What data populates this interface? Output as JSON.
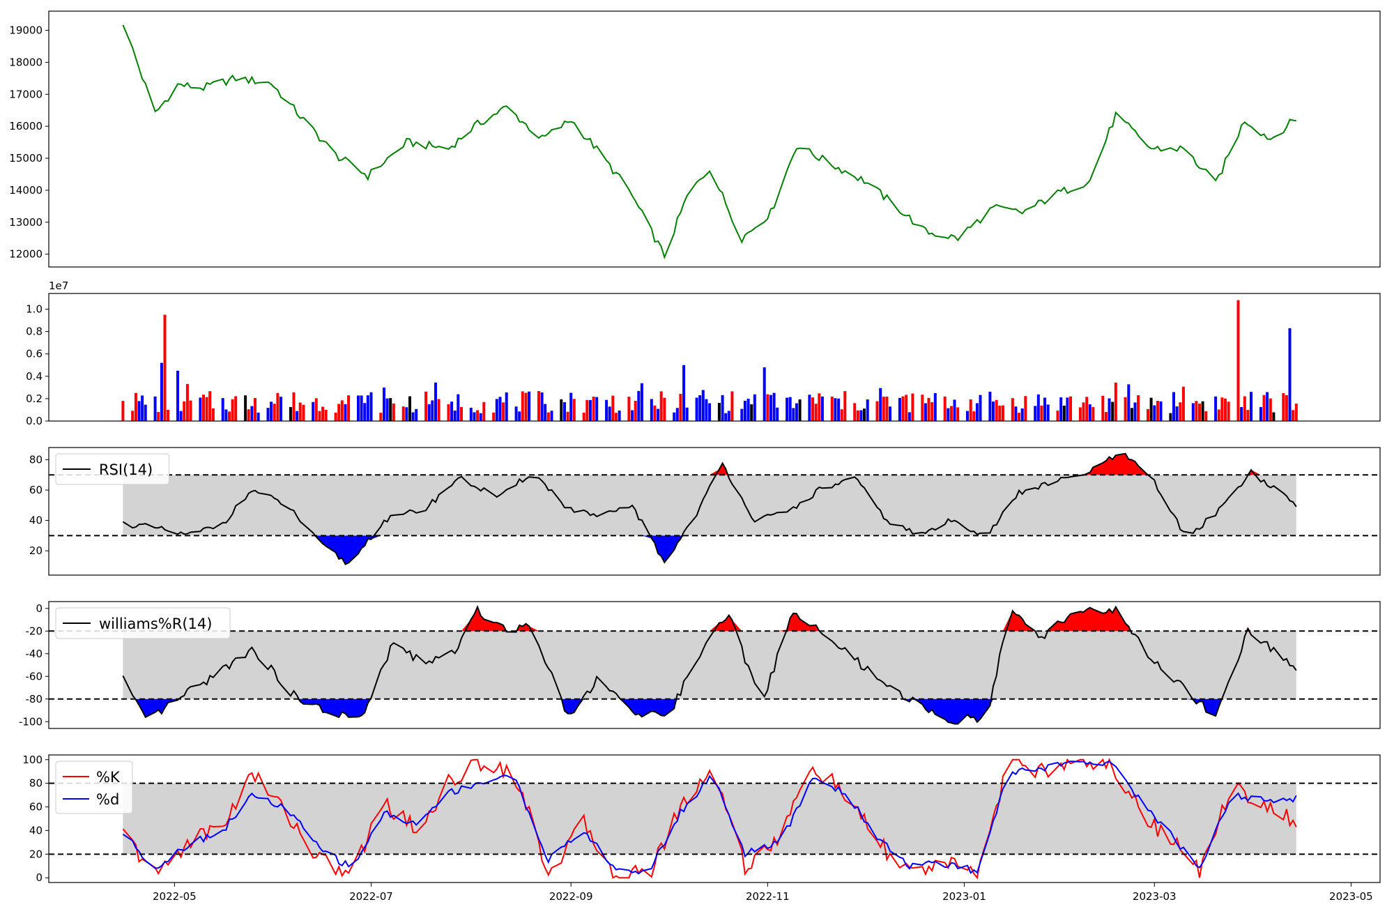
{
  "chart_data": [
    {
      "type": "line",
      "panel": "price",
      "title": "",
      "xlabel": "",
      "ylabel": "",
      "ylim": [
        11600,
        19600
      ],
      "yticks": [
        "12000",
        "13000",
        "14000",
        "15000",
        "16000",
        "17000",
        "18000",
        "19000"
      ],
      "grid": false,
      "line_color": "#008000",
      "series": [
        {
          "x": [
            "2022-04-15",
            "2022-04-25",
            "2022-05-02",
            "2022-05-10",
            "2022-05-20",
            "2022-05-31",
            "2022-06-10",
            "2022-06-20",
            "2022-06-30",
            "2022-07-12",
            "2022-07-25",
            "2022-08-02",
            "2022-08-12",
            "2022-08-23",
            "2022-09-01",
            "2022-09-08",
            "2022-09-19",
            "2022-09-30",
            "2022-10-07",
            "2022-10-14",
            "2022-10-24",
            "2022-11-02",
            "2022-11-10",
            "2022-11-21",
            "2022-12-01",
            "2022-12-12",
            "2022-12-20",
            "2022-12-30",
            "2023-01-10",
            "2023-01-19",
            "2023-01-30",
            "2023-02-09",
            "2023-02-17",
            "2023-02-28",
            "2023-03-10",
            "2023-03-20",
            "2023-03-29",
            "2023-04-06",
            "2023-04-14"
          ],
          "values": [
            19250,
            16400,
            17300,
            17200,
            17500,
            17350,
            16200,
            15100,
            14450,
            15500,
            15300,
            16000,
            16600,
            15600,
            16200,
            15400,
            14000,
            11950,
            13800,
            14700,
            12500,
            13300,
            15400,
            14800,
            14300,
            13400,
            12700,
            12500,
            13450,
            13300,
            13900,
            14300,
            16350,
            15300,
            15300,
            14200,
            16200,
            15600,
            16250
          ]
        }
      ]
    },
    {
      "type": "bar",
      "panel": "volume",
      "title": "",
      "ylabel": "",
      "scale_label": "1e7",
      "ylim": [
        0,
        1.14
      ],
      "yticks": [
        "0.0",
        "0.2",
        "0.4",
        "0.6",
        "0.8",
        "1.0"
      ],
      "colors": {
        "up": "#ff0000",
        "down": "#0000ff",
        "flat": "#000000"
      },
      "series": [
        {
          "x": [
            "2022-04-15",
            "2022-04-27",
            "2022-04-28",
            "2022-05-02",
            "2022-07-25",
            "2022-10-06",
            "2022-10-31",
            "2023-03-27",
            "2023-04-12"
          ],
          "values": [
            0.18,
            0.52,
            0.95,
            0.45,
            0.15,
            0.5,
            0.48,
            1.08,
            0.83
          ]
        }
      ]
    },
    {
      "type": "line",
      "panel": "rsi",
      "title": "",
      "ylabel": "",
      "ylim": [
        4,
        88
      ],
      "yticks": [
        "20",
        "40",
        "60",
        "80"
      ],
      "thresholds": [
        30,
        70
      ],
      "legend": {
        "label": "RSI(14)",
        "position": "upper-left"
      },
      "fill_colors": {
        "above": "#ff0000",
        "below": "#0000ff",
        "band": "#d3d3d3"
      },
      "series": [
        {
          "name": "RSI(14)",
          "x": [
            "2022-04-15",
            "2022-04-25",
            "2022-05-05",
            "2022-05-16",
            "2022-05-25",
            "2022-06-05",
            "2022-06-15",
            "2022-06-24",
            "2022-07-05",
            "2022-07-18",
            "2022-07-28",
            "2022-08-10",
            "2022-08-20",
            "2022-08-31",
            "2022-09-10",
            "2022-09-20",
            "2022-09-30",
            "2022-10-10",
            "2022-10-18",
            "2022-10-28",
            "2022-11-07",
            "2022-11-17",
            "2022-11-28",
            "2022-12-08",
            "2022-12-18",
            "2022-12-28",
            "2023-01-08",
            "2023-01-18",
            "2023-01-28",
            "2023-02-07",
            "2023-02-19",
            "2023-03-01",
            "2023-03-11",
            "2023-03-21",
            "2023-03-31",
            "2023-04-14"
          ],
          "values": [
            38,
            35,
            30,
            38,
            60,
            50,
            25,
            11,
            40,
            48,
            68,
            55,
            72,
            48,
            42,
            50,
            12,
            45,
            77,
            40,
            45,
            60,
            68,
            40,
            30,
            40,
            30,
            58,
            65,
            70,
            85,
            65,
            28,
            47,
            72,
            50
          ]
        }
      ]
    },
    {
      "type": "line",
      "panel": "williams",
      "title": "",
      "ylabel": "",
      "ylim": [
        -106,
        6
      ],
      "yticks": [
        "0",
        "-20",
        "-40",
        "-60",
        "-80",
        "-100"
      ],
      "thresholds": [
        -20,
        -80
      ],
      "legend": {
        "label": "williams%R(14)",
        "position": "upper-left"
      },
      "fill_colors": {
        "above": "#ff0000",
        "below": "#0000ff",
        "band": "#d3d3d3"
      },
      "series": [
        {
          "name": "williams%R(14)",
          "x": [
            "2022-04-15",
            "2022-04-22",
            "2022-05-05",
            "2022-05-18",
            "2022-05-25",
            "2022-06-08",
            "2022-06-18",
            "2022-06-28",
            "2022-07-08",
            "2022-07-18",
            "2022-07-28",
            "2022-08-03",
            "2022-08-12",
            "2022-08-20",
            "2022-08-31",
            "2022-09-10",
            "2022-09-22",
            "2022-10-02",
            "2022-10-12",
            "2022-10-20",
            "2022-10-30",
            "2022-11-09",
            "2022-11-19",
            "2022-11-28",
            "2022-12-08",
            "2022-12-18",
            "2022-12-28",
            "2023-01-08",
            "2023-01-15",
            "2023-01-25",
            "2023-02-05",
            "2023-02-17",
            "2023-02-28",
            "2023-03-10",
            "2023-03-20",
            "2023-03-30",
            "2023-04-14"
          ],
          "values": [
            -61,
            -100,
            -75,
            -50,
            -35,
            -80,
            -92,
            -98,
            -30,
            -50,
            -35,
            -2,
            -18,
            -15,
            -95,
            -60,
            -97,
            -90,
            -35,
            -5,
            -85,
            -2,
            -25,
            -45,
            -70,
            -85,
            -100,
            -95,
            -3,
            -25,
            -1,
            -2,
            -45,
            -70,
            -97,
            -20,
            -53
          ]
        }
      ]
    },
    {
      "type": "line",
      "panel": "stochastic",
      "title": "",
      "ylabel": "",
      "xlabel": "",
      "ylim": [
        -4,
        104
      ],
      "yticks": [
        "0",
        "20",
        "40",
        "60",
        "80",
        "100"
      ],
      "thresholds": [
        20,
        80
      ],
      "band_color": "#d3d3d3",
      "xticks": [
        "2022-05",
        "2022-07",
        "2022-09",
        "2022-11",
        "2023-01",
        "2023-03",
        "2023-05"
      ],
      "legend": {
        "position": "upper-left"
      },
      "series": [
        {
          "name": "%K",
          "color": "#ff0000",
          "x": [
            "2022-04-15",
            "2022-04-25",
            "2022-05-05",
            "2022-05-16",
            "2022-05-25",
            "2022-06-05",
            "2022-06-15",
            "2022-06-25",
            "2022-07-05",
            "2022-07-15",
            "2022-07-25",
            "2022-08-03",
            "2022-08-14",
            "2022-08-25",
            "2022-09-05",
            "2022-09-15",
            "2022-09-25",
            "2022-10-05",
            "2022-10-15",
            "2022-10-25",
            "2022-11-05",
            "2022-11-15",
            "2022-11-25",
            "2022-12-05",
            "2022-12-15",
            "2022-12-25",
            "2023-01-05",
            "2023-01-15",
            "2023-01-25",
            "2023-02-05",
            "2023-02-15",
            "2023-02-25",
            "2023-03-05",
            "2023-03-15",
            "2023-03-25",
            "2023-04-05",
            "2023-04-14"
          ],
          "values": [
            38,
            2,
            30,
            45,
            88,
            55,
            15,
            3,
            65,
            40,
            80,
            98,
            92,
            5,
            45,
            3,
            3,
            60,
            95,
            10,
            35,
            95,
            70,
            30,
            5,
            12,
            3,
            100,
            90,
            100,
            99,
            55,
            35,
            5,
            80,
            60,
            47
          ]
        },
        {
          "name": "%d",
          "color": "#0000ff",
          "x": [
            "2022-04-15",
            "2022-04-25",
            "2022-05-05",
            "2022-05-16",
            "2022-05-25",
            "2022-06-05",
            "2022-06-15",
            "2022-06-25",
            "2022-07-05",
            "2022-07-15",
            "2022-07-25",
            "2022-08-03",
            "2022-08-14",
            "2022-08-25",
            "2022-09-05",
            "2022-09-15",
            "2022-09-25",
            "2022-10-05",
            "2022-10-15",
            "2022-10-25",
            "2022-11-05",
            "2022-11-15",
            "2022-11-25",
            "2022-12-05",
            "2022-12-15",
            "2022-12-25",
            "2023-01-05",
            "2023-01-15",
            "2023-01-25",
            "2023-02-05",
            "2023-02-15",
            "2023-02-25",
            "2023-03-05",
            "2023-03-15",
            "2023-03-25",
            "2023-04-05",
            "2023-04-14"
          ],
          "values": [
            38,
            8,
            28,
            40,
            70,
            58,
            25,
            8,
            55,
            45,
            72,
            80,
            88,
            15,
            40,
            6,
            5,
            55,
            88,
            20,
            30,
            85,
            72,
            35,
            10,
            12,
            6,
            90,
            92,
            99,
            98,
            65,
            40,
            8,
            70,
            65,
            67
          ]
        }
      ]
    }
  ]
}
